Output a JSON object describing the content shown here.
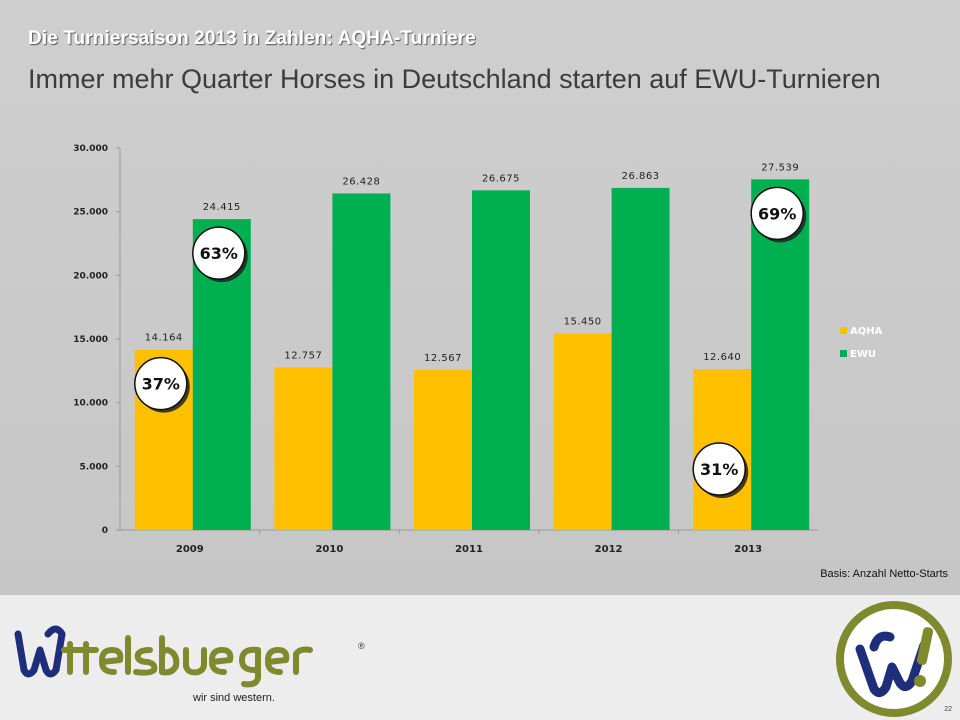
{
  "header": {
    "kicker": "Die Turniersaison 2013 in Zahlen: AQHA-Turniere",
    "headline": "Immer mehr Quarter Horses in Deutschland starten auf EWU-Turnieren"
  },
  "chart_data": {
    "type": "bar",
    "categories": [
      "2009",
      "2010",
      "2011",
      "2012",
      "2013"
    ],
    "series": [
      {
        "name": "AQHA",
        "values": [
          14164,
          12757,
          12567,
          15450,
          12640
        ],
        "labels": [
          "14.164",
          "12.757",
          "12.567",
          "15.450",
          "12.640"
        ],
        "color": "#ffc000"
      },
      {
        "name": "EWU",
        "values": [
          24415,
          26428,
          26675,
          26863,
          27539
        ],
        "labels": [
          "24.415",
          "26.428",
          "26.675",
          "26.863",
          "27.539"
        ],
        "color": "#00b050"
      }
    ],
    "ylim": [
      0,
      30000
    ],
    "yticks": [
      0,
      5000,
      10000,
      15000,
      20000,
      25000,
      30000
    ],
    "ytick_labels": [
      "0",
      "5.000",
      "10.000",
      "15.000",
      "20.000",
      "25.000",
      "30.000"
    ],
    "grid": false,
    "legend": "right",
    "annotations": [
      {
        "text": "37%",
        "series": "AQHA",
        "category": "2009"
      },
      {
        "text": "63%",
        "series": "EWU",
        "category": "2009"
      },
      {
        "text": "31%",
        "series": "AQHA",
        "category": "2013"
      },
      {
        "text": "69%",
        "series": "EWU",
        "category": "2013"
      }
    ]
  },
  "note": "Basis: Anzahl Netto-Starts",
  "footer": {
    "tagline": "wir sind western.",
    "registered": "®",
    "page_number": "22",
    "brand_color": "#7f8a2e"
  }
}
